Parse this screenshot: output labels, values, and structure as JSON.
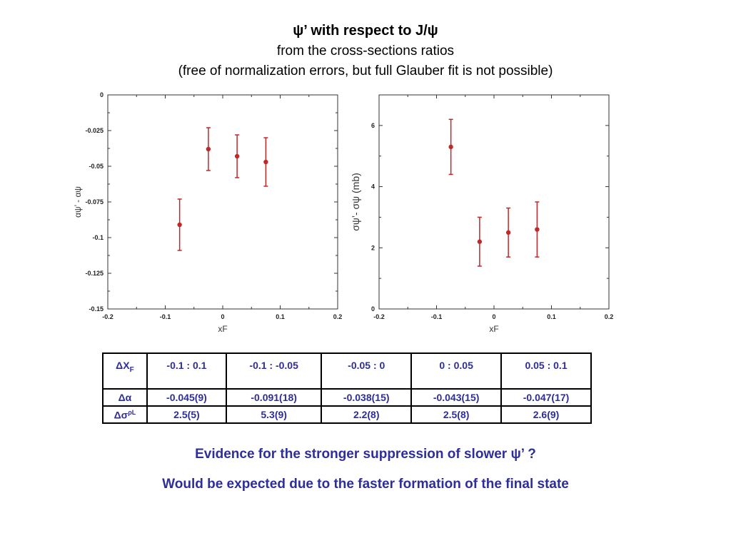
{
  "header": {
    "title": "ψ’  with respect to J/ψ",
    "subtitle1": "from the cross-sections ratios",
    "subtitle2": "(free of normalization errors, but full Glauber fit is not possible)"
  },
  "chart_data": [
    {
      "type": "scatter",
      "title": "",
      "xlabel": "xF",
      "ylabel": "αψ’ - αψ",
      "xlim": [
        -0.2,
        0.2
      ],
      "ylim": [
        -0.15,
        0
      ],
      "xticks": [
        -0.2,
        -0.1,
        0,
        0.1,
        0.2
      ],
      "xtick_labels": [
        "-0.2",
        "-0.1",
        "0",
        "0.1",
        "0.2"
      ],
      "yticks": [
        -0.15,
        -0.125,
        -0.1,
        -0.075,
        -0.05,
        -0.025,
        0
      ],
      "ytick_labels": [
        "-0.15",
        "-0.125",
        "-0.1",
        "-0.075",
        "-0.05",
        "-0.025",
        "0"
      ],
      "grid": false,
      "color": "#c0282a",
      "points": [
        {
          "x": -0.075,
          "y": -0.091,
          "err": 0.018
        },
        {
          "x": -0.025,
          "y": -0.038,
          "err": 0.015
        },
        {
          "x": 0.025,
          "y": -0.043,
          "err": 0.015
        },
        {
          "x": 0.075,
          "y": -0.047,
          "err": 0.017
        }
      ]
    },
    {
      "type": "scatter",
      "title": "",
      "xlabel": "xF",
      "ylabel": "σψ’- σψ (mb)",
      "xlim": [
        -0.2,
        0.2
      ],
      "ylim": [
        0,
        7
      ],
      "xticks": [
        -0.2,
        -0.1,
        0,
        0.1,
        0.2
      ],
      "xtick_labels": [
        "-0.2",
        "-0.1",
        "0",
        "0.1",
        "0.2"
      ],
      "yticks": [
        0,
        2,
        4,
        6
      ],
      "ytick_labels": [
        "0",
        "2",
        "4",
        "6"
      ],
      "grid": false,
      "color": "#c0282a",
      "points": [
        {
          "x": -0.075,
          "y": 5.3,
          "err": 0.9
        },
        {
          "x": -0.025,
          "y": 2.2,
          "err": 0.8
        },
        {
          "x": 0.025,
          "y": 2.5,
          "err": 0.8
        },
        {
          "x": 0.075,
          "y": 2.6,
          "err": 0.9
        }
      ]
    }
  ],
  "table": {
    "row_heads": {
      "dxf": "ΔX",
      "dxf_sub": "F",
      "dalpha": "Δα",
      "dsigma": "Δσ",
      "dsigma_sup": "ρL"
    },
    "ranges": [
      "-0.1 : 0.1",
      "-0.1 : -0.05",
      "-0.05 : 0",
      "0 : 0.05",
      "0.05 : 0.1"
    ],
    "alpha": [
      "-0.045(9)",
      "-0.091(18)",
      "-0.038(15)",
      "-0.043(15)",
      "-0.047(17)"
    ],
    "sigma": [
      "2.5(5)",
      "5.3(9)",
      "2.2(8)",
      "2.5(8)",
      "2.6(9)"
    ]
  },
  "notes": {
    "line1": "Evidence for the stronger suppression of slower ψ’ ?",
    "line2": "Would be expected due to the faster formation of the final state"
  }
}
